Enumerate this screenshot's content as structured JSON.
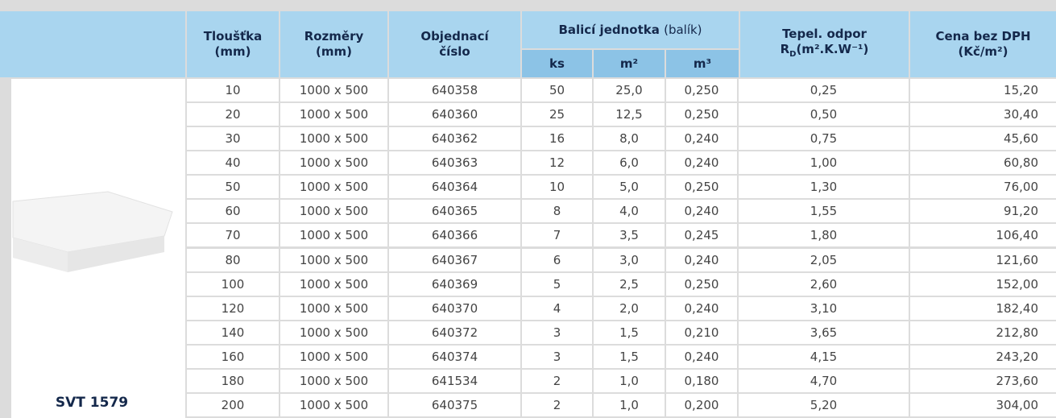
{
  "header": {
    "product": "SVT 1579",
    "thickness": "Tloušťka",
    "thickness_unit": "(mm)",
    "dimensions": "Rozměry",
    "dimensions_unit": "(mm)",
    "order": "Objednací",
    "order_2": "číslo",
    "package": "Balicí jednotka",
    "package_note": "(balík)",
    "ks": "ks",
    "m2": "m²",
    "m3": "m³",
    "resistance": "Tepel. odpor",
    "r_symbol": "R",
    "r_sub": "D",
    "r_unit": "(m².K.W⁻¹)",
    "price": "Cena bez DPH",
    "price_unit": "(Kč/m²)"
  },
  "table": {
    "rows": [
      [
        "10",
        "1000 x 500",
        "640358",
        "50",
        "25,0",
        "0,250",
        "0,25",
        "15,20"
      ],
      [
        "20",
        "1000 x 500",
        "640360",
        "25",
        "12,5",
        "0,250",
        "0,50",
        "30,40"
      ],
      [
        "30",
        "1000 x 500",
        "640362",
        "16",
        "8,0",
        "0,240",
        "0,75",
        "45,60"
      ],
      [
        "40",
        "1000 x 500",
        "640363",
        "12",
        "6,0",
        "0,240",
        "1,00",
        "60,80"
      ],
      [
        "50",
        "1000 x 500",
        "640364",
        "10",
        "5,0",
        "0,250",
        "1,30",
        "76,00"
      ],
      [
        "60",
        "1000 x 500",
        "640365",
        "8",
        "4,0",
        "0,240",
        "1,55",
        "91,20"
      ],
      [
        "70",
        "1000 x 500",
        "640366",
        "7",
        "3,5",
        "0,245",
        "1,80",
        "106,40"
      ],
      [
        "80",
        "1000 x 500",
        "640367",
        "6",
        "3,0",
        "0,240",
        "2,05",
        "121,60"
      ],
      [
        "100",
        "1000 x 500",
        "640369",
        "5",
        "2,5",
        "0,250",
        "2,60",
        "152,00"
      ],
      [
        "120",
        "1000 x 500",
        "640370",
        "4",
        "2,0",
        "0,240",
        "3,10",
        "182,40"
      ],
      [
        "140",
        "1000 x 500",
        "640372",
        "3",
        "1,5",
        "0,210",
        "3,65",
        "212,80"
      ],
      [
        "160",
        "1000 x 500",
        "640374",
        "3",
        "1,5",
        "0,240",
        "4,15",
        "243,20"
      ],
      [
        "180",
        "1000 x 500",
        "641534",
        "2",
        "1,0",
        "0,180",
        "4,70",
        "273,60"
      ],
      [
        "200",
        "1000 x 500",
        "640375",
        "2",
        "1,0",
        "0,200",
        "5,20",
        "304,00"
      ]
    ]
  }
}
